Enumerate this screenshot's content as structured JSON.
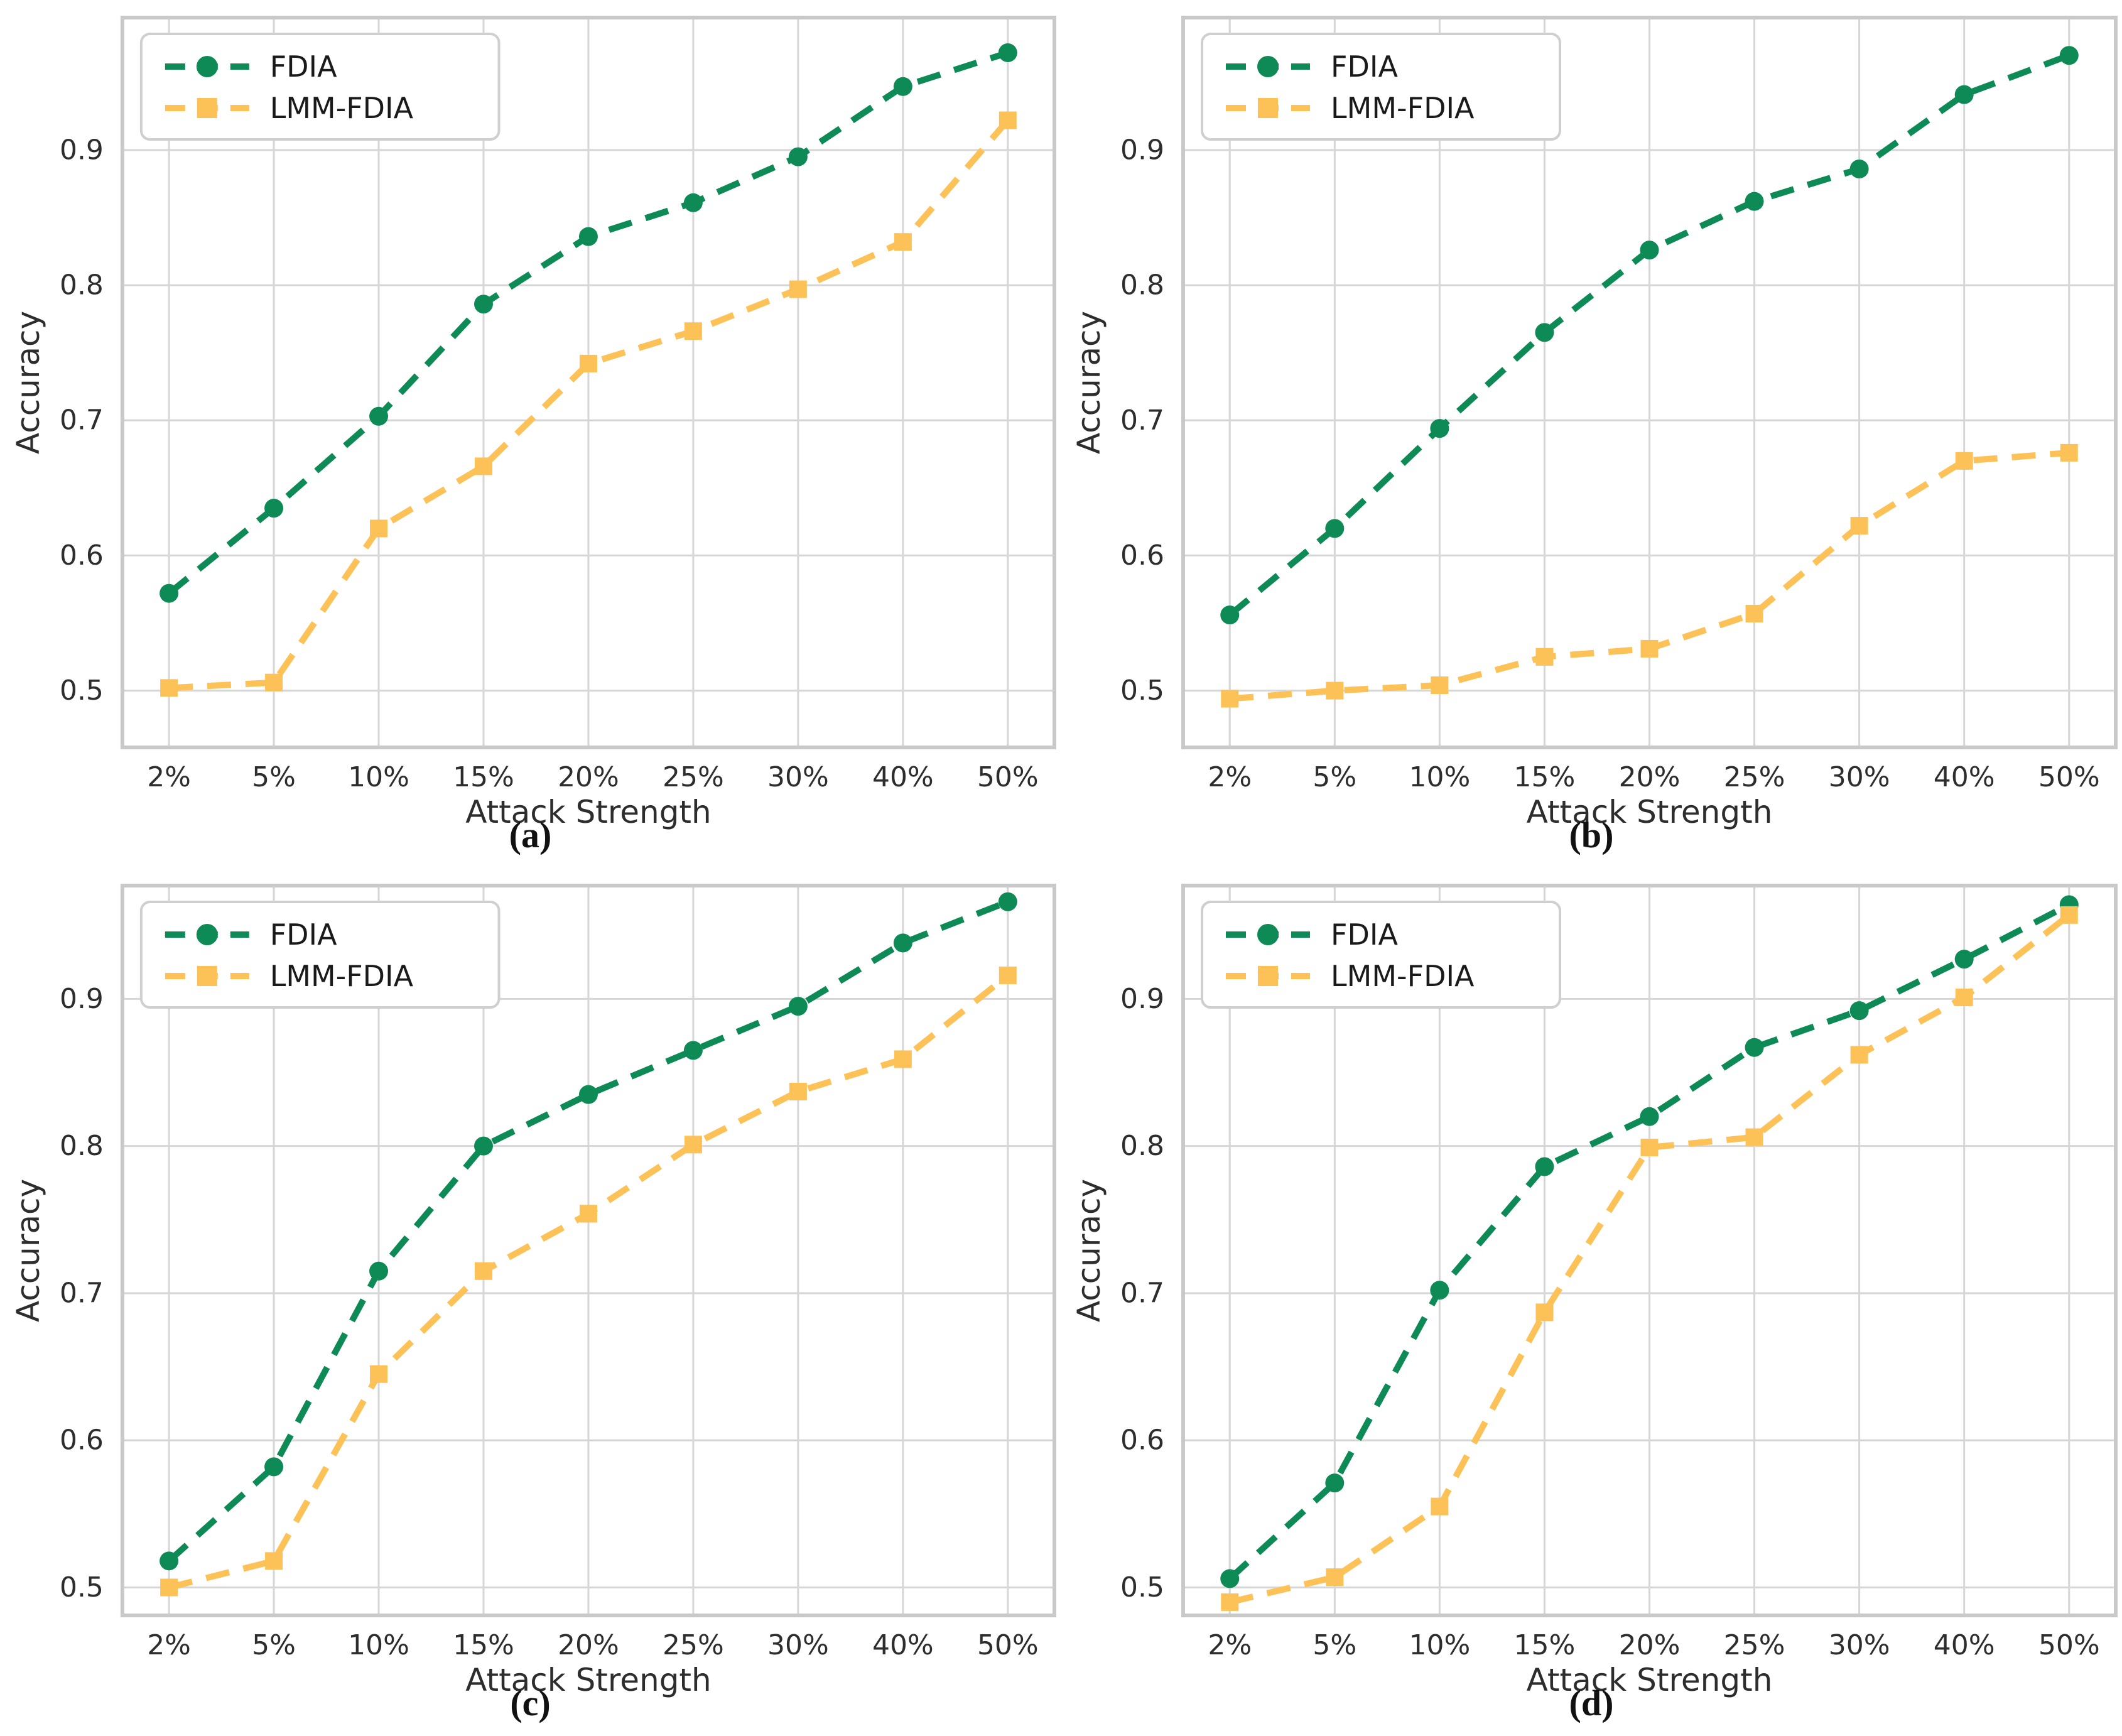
{
  "figure": {
    "background": "#ffffff"
  },
  "style": {
    "series_colors": [
      "#0d8a56",
      "#fcc257"
    ],
    "grid_color": "#d6d6d6",
    "spine_color": "#c9c9c9",
    "text_color": "#2d2d2d",
    "legend_border": "#cfcfcf"
  },
  "chart_data": [
    {
      "type": "line",
      "caption": "(a)",
      "xlabel": "Attack Strength",
      "ylabel": "Accuracy",
      "categories": [
        "2%",
        "5%",
        "10%",
        "15%",
        "20%",
        "25%",
        "30%",
        "40%",
        "50%"
      ],
      "yticks": [
        "0.5",
        "0.6",
        "0.7",
        "0.8",
        "0.9"
      ],
      "ylim": [
        0.458,
        0.998
      ],
      "grid": true,
      "legend_position": "upper left",
      "series": [
        {
          "name": "FDIA",
          "marker": "circle",
          "values": [
            0.572,
            0.635,
            0.703,
            0.786,
            0.836,
            0.861,
            0.895,
            0.947,
            0.972
          ]
        },
        {
          "name": "LMM-FDIA",
          "marker": "square",
          "values": [
            0.502,
            0.506,
            0.62,
            0.666,
            0.742,
            0.766,
            0.797,
            0.832,
            0.922
          ]
        }
      ]
    },
    {
      "type": "line",
      "caption": "(b)",
      "xlabel": "Attack Strength",
      "ylabel": "Accuracy",
      "categories": [
        "2%",
        "5%",
        "10%",
        "15%",
        "20%",
        "25%",
        "30%",
        "40%",
        "50%"
      ],
      "yticks": [
        "0.5",
        "0.6",
        "0.7",
        "0.8",
        "0.9"
      ],
      "ylim": [
        0.458,
        0.998
      ],
      "grid": true,
      "legend_position": "upper left",
      "series": [
        {
          "name": "FDIA",
          "marker": "circle",
          "values": [
            0.556,
            0.62,
            0.694,
            0.765,
            0.826,
            0.862,
            0.886,
            0.941,
            0.97
          ]
        },
        {
          "name": "LMM-FDIA",
          "marker": "square",
          "values": [
            0.494,
            0.5,
            0.504,
            0.525,
            0.531,
            0.557,
            0.622,
            0.67,
            0.676
          ]
        }
      ]
    },
    {
      "type": "line",
      "caption": "(c)",
      "xlabel": "Attack Strength",
      "ylabel": "Accuracy",
      "categories": [
        "2%",
        "5%",
        "10%",
        "15%",
        "20%",
        "25%",
        "30%",
        "40%",
        "50%"
      ],
      "yticks": [
        "0.5",
        "0.6",
        "0.7",
        "0.8",
        "0.9"
      ],
      "ylim": [
        0.481,
        0.977
      ],
      "grid": true,
      "legend_position": "upper left",
      "series": [
        {
          "name": "FDIA",
          "marker": "circle",
          "values": [
            0.518,
            0.582,
            0.715,
            0.8,
            0.835,
            0.865,
            0.895,
            0.938,
            0.966
          ]
        },
        {
          "name": "LMM-FDIA",
          "marker": "square",
          "values": [
            0.5,
            0.518,
            0.645,
            0.715,
            0.754,
            0.801,
            0.837,
            0.859,
            0.916
          ]
        }
      ]
    },
    {
      "type": "line",
      "caption": "(d)",
      "xlabel": "Attack Strength",
      "ylabel": "Accuracy",
      "categories": [
        "2%",
        "5%",
        "10%",
        "15%",
        "20%",
        "25%",
        "30%",
        "40%",
        "50%"
      ],
      "yticks": [
        "0.5",
        "0.6",
        "0.7",
        "0.8",
        "0.9"
      ],
      "ylim": [
        0.481,
        0.977
      ],
      "grid": true,
      "legend_position": "upper left",
      "series": [
        {
          "name": "FDIA",
          "marker": "circle",
          "values": [
            0.506,
            0.571,
            0.702,
            0.786,
            0.82,
            0.867,
            0.892,
            0.927,
            0.964
          ]
        },
        {
          "name": "LMM-FDIA",
          "marker": "square",
          "values": [
            0.49,
            0.507,
            0.555,
            0.687,
            0.799,
            0.806,
            0.862,
            0.901,
            0.957
          ]
        }
      ]
    }
  ]
}
